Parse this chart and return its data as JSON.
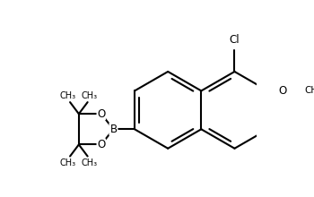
{
  "bg_color": "#ffffff",
  "line_color": "#000000",
  "line_width": 1.5,
  "font_size": 7.5,
  "label_Cl": "Cl",
  "label_O_top": "O",
  "label_O_bot": "O",
  "label_B": "B",
  "label_OMe": "O",
  "xlim": [
    -2.5,
    3.2
  ],
  "ylim": [
    -2.2,
    2.8
  ]
}
